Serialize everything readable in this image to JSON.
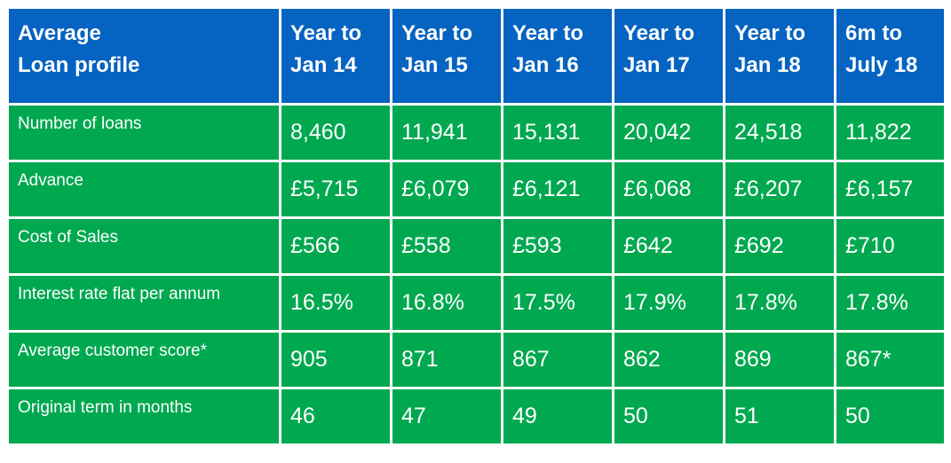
{
  "header": {
    "label_lines": [
      "Average",
      "Loan profile"
    ],
    "periods": [
      [
        "Year to",
        "Jan 14"
      ],
      [
        "Year to",
        "Jan 15"
      ],
      [
        "Year to",
        "Jan 16"
      ],
      [
        "Year to",
        "Jan 17"
      ],
      [
        "Year to",
        "Jan 18"
      ],
      [
        "6m to",
        "July 18"
      ]
    ]
  },
  "rows": [
    {
      "label": "Number of loans",
      "values": [
        "8,460",
        "11,941",
        "15,131",
        "20,042",
        "24,518",
        "11,822"
      ]
    },
    {
      "label": "Advance",
      "values": [
        "£5,715",
        "£6,079",
        "£6,121",
        "£6,068",
        "£6,207",
        "£6,157"
      ]
    },
    {
      "label": "Cost of Sales",
      "values": [
        "£566",
        "£558",
        "£593",
        "£642",
        "£692",
        "£710"
      ]
    },
    {
      "label": "Interest rate flat per annum",
      "values": [
        "16.5%",
        "16.8%",
        "17.5%",
        "17.9%",
        "17.8%",
        "17.8%"
      ]
    },
    {
      "label": "Average customer score*",
      "values": [
        "905",
        "871",
        "867",
        "862",
        "869",
        "867*"
      ]
    },
    {
      "label": "Original term in months",
      "values": [
        "46",
        "47",
        "49",
        "50",
        "51",
        "50"
      ]
    }
  ],
  "colors": {
    "header_bg": "#0563c1",
    "body_bg": "#00a84f",
    "text": "#ffffff"
  }
}
